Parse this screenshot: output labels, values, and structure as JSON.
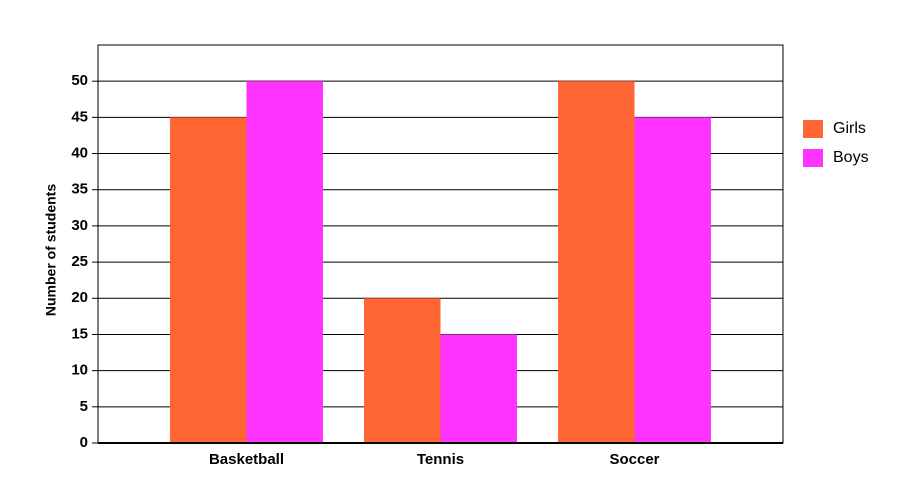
{
  "chart_data": {
    "type": "bar",
    "y_label": "Number of students",
    "categories": [
      "Basketball",
      "Tennis",
      "Soccer"
    ],
    "series": [
      {
        "name": "Girls",
        "color": "#ff6633",
        "values": [
          45,
          20,
          50
        ]
      },
      {
        "name": "Boys",
        "color": "#ff33ff",
        "values": [
          50,
          15,
          45
        ]
      }
    ],
    "ylim": [
      0,
      55
    ],
    "yticks": [
      0,
      5,
      10,
      15,
      20,
      25,
      30,
      35,
      40,
      45,
      50
    ],
    "grid": true,
    "legend": "right"
  }
}
